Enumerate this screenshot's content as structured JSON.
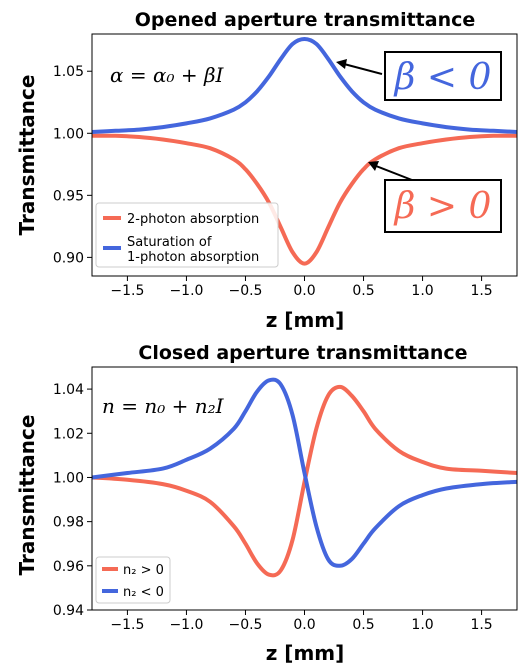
{
  "colors": {
    "red": "#f56a55",
    "blue": "#4466dd"
  },
  "chart_data": [
    {
      "type": "line",
      "title": "Opened aperture transmittance",
      "xlabel": "z [mm]",
      "ylabel": "Transmittance",
      "xlim": [
        -1.8,
        1.8
      ],
      "ylim": [
        0.885,
        1.08
      ],
      "xticks": [
        -1.5,
        -1.0,
        -0.5,
        0.0,
        0.5,
        1.0,
        1.5
      ],
      "xtick_labels": [
        "−1.5",
        "−1.0",
        "−0.5",
        "0.0",
        "0.5",
        "1.0",
        "1.5"
      ],
      "yticks": [
        0.9,
        0.95,
        1.0,
        1.05
      ],
      "ytick_labels": [
        "0.90",
        "0.95",
        "1.00",
        "1.05"
      ],
      "equation": "α = α₀ + βI",
      "legend": {
        "placement": "lower-left"
      },
      "callouts": [
        {
          "text": "β < 0",
          "color": "#4466dd"
        },
        {
          "text": "β > 0",
          "color": "#f56a55"
        }
      ],
      "series": [
        {
          "name": "2-photon absorption",
          "color": "#f56a55",
          "x": [
            -1.8,
            -1.6,
            -1.4,
            -1.2,
            -1.0,
            -0.8,
            -0.6,
            -0.5,
            -0.4,
            -0.3,
            -0.2,
            -0.1,
            0.0,
            0.1,
            0.2,
            0.3,
            0.4,
            0.5,
            0.6,
            0.8,
            1.0,
            1.2,
            1.4,
            1.6,
            1.8
          ],
          "y": [
            0.998,
            0.998,
            0.997,
            0.995,
            0.992,
            0.988,
            0.979,
            0.971,
            0.959,
            0.944,
            0.924,
            0.904,
            0.895,
            0.904,
            0.924,
            0.944,
            0.959,
            0.971,
            0.979,
            0.988,
            0.992,
            0.995,
            0.997,
            0.998,
            0.998
          ]
        },
        {
          "name": "Saturation of 1-photon absorption",
          "name_lines": [
            "Saturation of",
            "1-photon absorption"
          ],
          "color": "#4466dd",
          "x": [
            -1.8,
            -1.6,
            -1.4,
            -1.2,
            -1.0,
            -0.8,
            -0.6,
            -0.5,
            -0.4,
            -0.3,
            -0.2,
            -0.1,
            0.0,
            0.1,
            0.2,
            0.3,
            0.4,
            0.5,
            0.6,
            0.8,
            1.0,
            1.2,
            1.4,
            1.6,
            1.8
          ],
          "y": [
            1.001,
            1.002,
            1.003,
            1.005,
            1.008,
            1.012,
            1.019,
            1.025,
            1.034,
            1.046,
            1.06,
            1.072,
            1.076,
            1.072,
            1.06,
            1.046,
            1.034,
            1.025,
            1.019,
            1.012,
            1.008,
            1.005,
            1.003,
            1.002,
            1.001
          ]
        }
      ]
    },
    {
      "type": "line",
      "title": "Closed aperture transmittance",
      "xlabel": "z [mm]",
      "ylabel": "Transmittance",
      "xlim": [
        -1.8,
        1.8
      ],
      "ylim": [
        0.94,
        1.05
      ],
      "xticks": [
        -1.5,
        -1.0,
        -0.5,
        0.0,
        0.5,
        1.0,
        1.5
      ],
      "xtick_labels": [
        "−1.5",
        "−1.0",
        "−0.5",
        "0.0",
        "0.5",
        "1.0",
        "1.5"
      ],
      "yticks": [
        0.94,
        0.96,
        0.98,
        1.0,
        1.02,
        1.04
      ],
      "ytick_labels": [
        "0.94",
        "0.96",
        "0.98",
        "1.00",
        "1.02",
        "1.04"
      ],
      "equation": "n = n₀ + n₂I",
      "legend": {
        "placement": "lower-left"
      },
      "series": [
        {
          "name": "n₂ > 0",
          "color": "#f56a55",
          "x": [
            -1.8,
            -1.5,
            -1.2,
            -1.0,
            -0.8,
            -0.6,
            -0.5,
            -0.4,
            -0.3,
            -0.2,
            -0.1,
            0.0,
            0.1,
            0.2,
            0.3,
            0.4,
            0.5,
            0.6,
            0.8,
            1.0,
            1.2,
            1.5,
            1.8
          ],
          "y": [
            1.0,
            0.999,
            0.997,
            0.994,
            0.989,
            0.978,
            0.97,
            0.961,
            0.956,
            0.958,
            0.972,
            0.998,
            1.022,
            1.037,
            1.041,
            1.037,
            1.03,
            1.022,
            1.012,
            1.007,
            1.004,
            1.003,
            1.002
          ]
        },
        {
          "name": "n₂ < 0",
          "color": "#4466dd",
          "x": [
            -1.8,
            -1.5,
            -1.2,
            -1.0,
            -0.8,
            -0.6,
            -0.5,
            -0.4,
            -0.3,
            -0.2,
            -0.1,
            0.0,
            0.1,
            0.2,
            0.3,
            0.4,
            0.5,
            0.6,
            0.8,
            1.0,
            1.2,
            1.5,
            1.8
          ],
          "y": [
            1.0,
            1.002,
            1.004,
            1.008,
            1.013,
            1.022,
            1.03,
            1.039,
            1.044,
            1.042,
            1.028,
            1.002,
            0.978,
            0.963,
            0.96,
            0.963,
            0.97,
            0.977,
            0.987,
            0.992,
            0.995,
            0.997,
            0.998
          ]
        }
      ]
    }
  ]
}
